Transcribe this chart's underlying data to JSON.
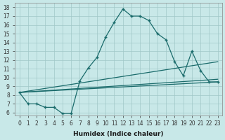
{
  "xlabel": "Humidex (Indice chaleur)",
  "ylabel": "",
  "xlim": [
    -0.5,
    23.5
  ],
  "ylim": [
    5.7,
    18.5
  ],
  "bg_color": "#c8e8e8",
  "line_color": "#1a6b6b",
  "grid_color": "#a0c8c8",
  "line1_x": [
    0,
    1,
    2,
    3,
    4,
    5,
    6,
    7,
    8,
    9,
    10,
    11,
    12,
    13,
    14,
    15,
    16,
    17,
    18,
    19,
    20,
    21,
    22,
    23
  ],
  "line1_y": [
    8.3,
    7.0,
    7.0,
    6.6,
    6.6,
    5.9,
    5.9,
    9.6,
    11.1,
    12.3,
    14.6,
    16.3,
    17.8,
    17.0,
    17.0,
    16.5,
    15.0,
    14.3,
    11.8,
    10.2,
    13.0,
    10.8,
    9.5,
    9.5
  ],
  "line2_x": [
    0,
    23
  ],
  "line2_y": [
    8.3,
    9.5
  ],
  "line3_x": [
    0,
    23
  ],
  "line3_y": [
    8.3,
    11.8
  ],
  "line4_x": [
    0,
    23
  ],
  "line4_y": [
    8.3,
    9.8
  ],
  "yticks": [
    6,
    7,
    8,
    9,
    10,
    11,
    12,
    13,
    14,
    15,
    16,
    17,
    18
  ],
  "xticks": [
    0,
    1,
    2,
    3,
    4,
    5,
    6,
    7,
    8,
    9,
    10,
    11,
    12,
    13,
    14,
    15,
    16,
    17,
    18,
    19,
    20,
    21,
    22,
    23
  ],
  "tick_fontsize": 5.5,
  "xlabel_fontsize": 6.5
}
